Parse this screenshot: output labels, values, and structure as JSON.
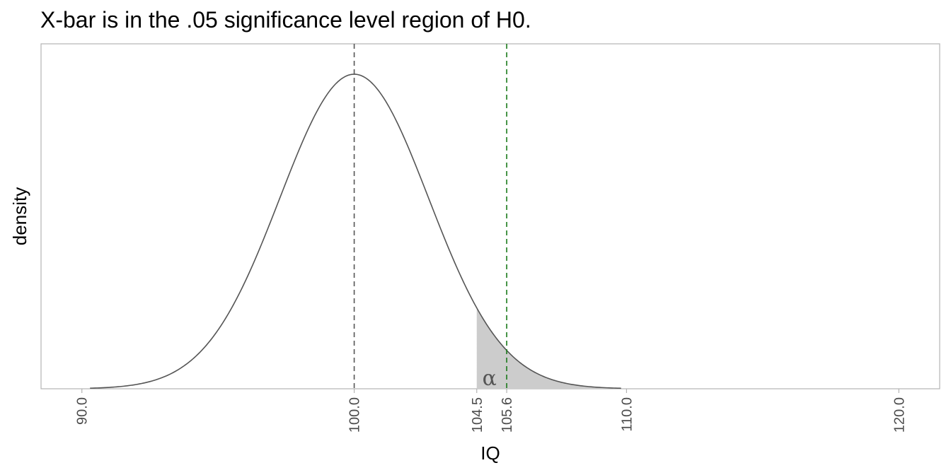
{
  "chart_data": {
    "type": "area",
    "title": "X-bar is in the .05 significance level region of H0.",
    "xlabel": "IQ",
    "ylabel": "density",
    "xlim": [
      88.5,
      121.5
    ],
    "x_ticks": [
      90.0,
      100.0,
      104.5,
      105.6,
      110.0,
      120.0
    ],
    "x_tick_labels": [
      "90.0",
      "100.0",
      "104.5",
      "105.6",
      "110.0",
      "120.0"
    ],
    "distribution": {
      "name": "normal",
      "mean": 100.0,
      "sd": 2.73,
      "x_from": 90.3,
      "x_to": 109.8
    },
    "shaded_region": {
      "from": 104.5,
      "to": 109.8,
      "label": "α"
    },
    "vlines": [
      {
        "x": 100.0,
        "style": "dashed",
        "color": "#555555"
      },
      {
        "x": 105.6,
        "style": "dashed",
        "color": "#1a7a1a"
      }
    ],
    "grid": false,
    "colors": {
      "curve": "#555555",
      "shade": "#cccccc",
      "panel_border": "#b3b3b3"
    }
  }
}
